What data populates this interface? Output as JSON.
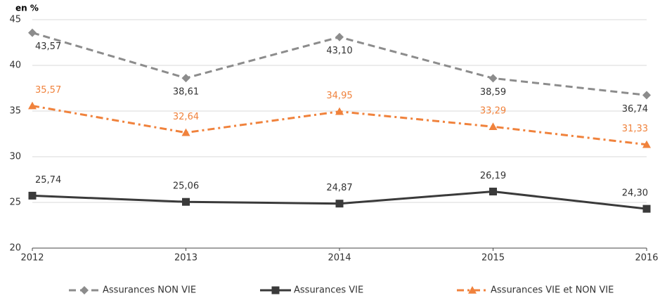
{
  "chart_data": {
    "type": "line",
    "y_label": "en %",
    "x": [
      2012,
      2013,
      2014,
      2015,
      2016
    ],
    "xlim": [
      2012,
      2016
    ],
    "xticks": [
      2012,
      2013,
      2014,
      2015,
      2016
    ],
    "ylim": [
      20,
      45
    ],
    "yticks": [
      20,
      25,
      30,
      35,
      40,
      45
    ],
    "grid": true,
    "series": [
      {
        "name": "Assurances NON VIE",
        "color": "#8c8c8c",
        "dash": "dashed",
        "marker": "diamond",
        "values": [
          43.57,
          38.61,
          43.1,
          38.59,
          36.74
        ],
        "value_labels": [
          "43,57",
          "38,61",
          "43,10",
          "38,59",
          "36,74"
        ]
      },
      {
        "name": "Assurances VIE",
        "color": "#3a3a3a",
        "dash": "solid",
        "marker": "square",
        "values": [
          25.74,
          25.06,
          24.87,
          26.19,
          24.3
        ],
        "value_labels": [
          "25,74",
          "25,06",
          "24,87",
          "26,19",
          "24,30"
        ]
      },
      {
        "name": "Assurances VIE et NON VIE",
        "color": "#f0823c",
        "dash": "dashdot",
        "marker": "triangle",
        "values": [
          35.57,
          32.64,
          34.95,
          33.29,
          31.33
        ],
        "value_labels": [
          "35,57",
          "32,64",
          "34,95",
          "33,29",
          "31,33"
        ]
      }
    ]
  }
}
